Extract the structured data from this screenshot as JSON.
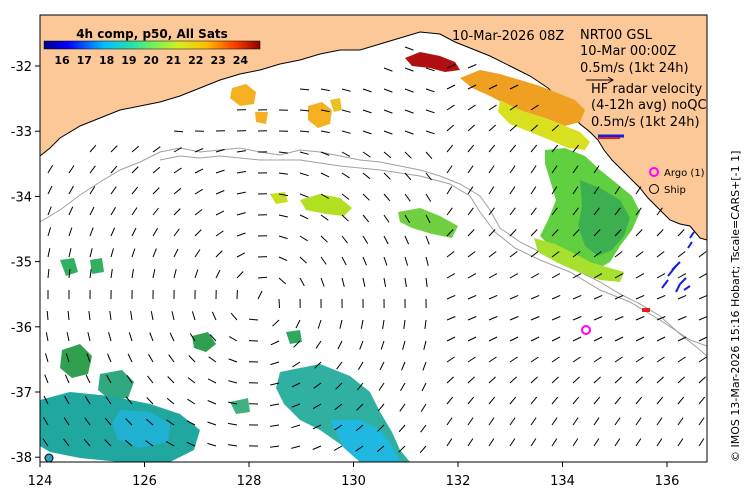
{
  "title_date": "10-Mar-2026 08Z",
  "colorbar": {
    "title": "4h comp, p50, All Sats",
    "ticks": [
      "16",
      "17",
      "18",
      "19",
      "20",
      "21",
      "22",
      "23",
      "24"
    ]
  },
  "radar_info": {
    "product": "NRT00 GSL",
    "time": "10-Mar 00:00Z",
    "scale1": "0.5m/s (1kt 24h)",
    "line1": "HF radar velocity",
    "line2": "(4-12h avg) noQC",
    "scale2": "0.5m/s (1kt 24h)"
  },
  "legend": {
    "argo": "Argo (1)",
    "ship": "Ship"
  },
  "x_axis": {
    "ticks": [
      "124",
      "126",
      "128",
      "130",
      "132",
      "134",
      "136"
    ]
  },
  "y_axis": {
    "ticks": [
      "-32",
      "-33",
      "-34",
      "-35",
      "-36",
      "-37",
      "-38"
    ]
  },
  "credit": "© IMOS 13-Mar-2026 15:16 Hobart; Tscale=CARS+[-1 1]",
  "colors": {
    "land": "#fcc898",
    "sea": "#ffffff",
    "argo": "#ff00ff",
    "radar_blue": "#1020e0",
    "radar_red": "#e02020",
    "contour": "#a0a0a0"
  }
}
